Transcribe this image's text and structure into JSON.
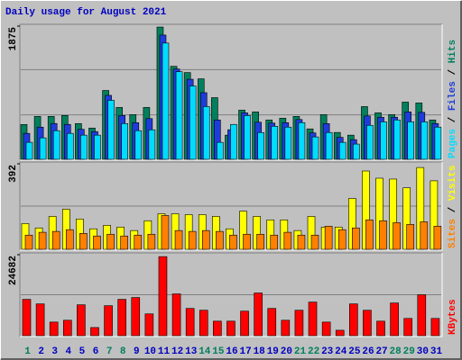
{
  "title": "Daily usage for August 2021",
  "legend_separator": " / ",
  "chart_data": [
    {
      "type": "bar",
      "ylim": [
        0,
        1875
      ],
      "yticks": [
        1875
      ],
      "series": [
        {
          "name": "Hits",
          "color": "#00805c",
          "values": [
            490,
            604,
            604,
            617,
            503,
            440,
            969,
            730,
            629,
            730,
            1862,
            1309,
            1221,
            1133,
            868,
            340,
            692,
            667,
            554,
            579,
            604,
            428,
            629,
            378,
            340,
            742,
            654,
            629,
            805,
            793,
            554
          ]
        },
        {
          "name": "Files",
          "color": "#1e3cdc",
          "values": [
            365,
            453,
            504,
            491,
            422,
            390,
            900,
            617,
            516,
            573,
            1749,
            1271,
            1127,
            938,
            554,
            416,
            654,
            522,
            510,
            516,
            560,
            372,
            503,
            309,
            277,
            610,
            591,
            592,
            667,
            661,
            504
          ]
        },
        {
          "name": "Pages",
          "color": "#00dcff",
          "values": [
            239,
            302,
            403,
            365,
            340,
            340,
            830,
            503,
            403,
            415,
            1636,
            1233,
            1032,
            742,
            239,
            491,
            616,
            377,
            465,
            453,
            516,
            315,
            377,
            239,
            214,
            478,
            528,
            554,
            528,
            528,
            453
          ]
        }
      ]
    },
    {
      "type": "bar",
      "ylim": [
        0,
        392
      ],
      "yticks": [
        392
      ],
      "series": [
        {
          "name": "Visits",
          "color": "#ffff00",
          "values": [
            118,
            98,
            151,
            184,
            139,
            94,
            110,
            102,
            86,
            131,
            163,
            163,
            159,
            159,
            151,
            94,
            175,
            151,
            135,
            135,
            86,
            151,
            102,
            102,
            233,
            359,
            326,
            322,
            282,
            375,
            314
          ]
        },
        {
          "name": "Sites",
          "color": "#ff8000",
          "values": [
            65,
            78,
            82,
            90,
            73,
            61,
            69,
            61,
            65,
            69,
            155,
            86,
            82,
            86,
            82,
            65,
            69,
            69,
            65,
            78,
            65,
            65,
            106,
            90,
            98,
            135,
            131,
            122,
            114,
            126,
            106
          ]
        }
      ]
    },
    {
      "type": "bar",
      "ylim": [
        0,
        24682
      ],
      "yticks": [
        24682
      ],
      "categories": [
        "1",
        "2",
        "3",
        "4",
        "5",
        "6",
        "7",
        "8",
        "9",
        "10",
        "11",
        "12",
        "13",
        "14",
        "15",
        "16",
        "17",
        "18",
        "19",
        "20",
        "21",
        "22",
        "23",
        "24",
        "25",
        "26",
        "27",
        "28",
        "29",
        "30",
        "31"
      ],
      "category_colors": [
        "#00805c",
        "#0000c0",
        "#0000c0",
        "#0000c0",
        "#0000c0",
        "#0000c0",
        "#00805c",
        "#00805c",
        "#0000c0",
        "#0000c0",
        "#0000c0",
        "#0000c0",
        "#0000c0",
        "#00805c",
        "#00805c",
        "#0000c0",
        "#0000c0",
        "#0000c0",
        "#0000c0",
        "#0000c0",
        "#00805c",
        "#00805c",
        "#0000c0",
        "#0000c0",
        "#0000c0",
        "#0000c0",
        "#0000c0",
        "#00805c",
        "#00805c",
        "#0000c0",
        "#0000c0"
      ],
      "series": [
        {
          "name": "KBytes",
          "color": "#ff0000",
          "values": [
            11080,
            9695,
            4155,
            4709,
            9418,
            2493,
            9141,
            11080,
            11634,
            6648,
            24099,
            12742,
            8310,
            7756,
            4432,
            4432,
            7479,
            13019,
            8310,
            4709,
            7756,
            10249,
            4155,
            1662,
            9695,
            7756,
            4432,
            9972,
            5263,
            12465,
            5263
          ]
        }
      ]
    }
  ]
}
